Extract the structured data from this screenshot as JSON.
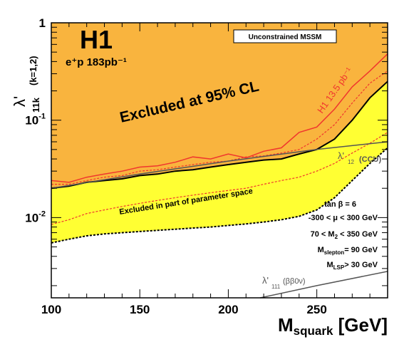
{
  "chart_data": {
    "type": "line",
    "experiment": "H1",
    "luminosity": "e⁺p 183pb⁻¹",
    "box_label": "Unconstrained MSSM",
    "xlabel_main": "M",
    "xlabel_sub": "squark",
    "xlabel_unit": " [GeV]",
    "ylabel_main": "λ'",
    "ylabel_sub": "11k",
    "ylabel_sup": "(k=1,2)",
    "xlim": [
      100,
      290
    ],
    "ylim": [
      0.0015,
      1
    ],
    "log_y": true,
    "x_ticks": [
      100,
      150,
      200,
      250
    ],
    "y_ticks": [
      {
        "value": 1,
        "base": "1",
        "exp": ""
      },
      {
        "value": 0.1,
        "base": "10",
        "exp": "-1"
      },
      {
        "value": 0.01,
        "base": "10",
        "exp": "-2"
      }
    ],
    "annotations": {
      "excluded_95": "Excluded at 95% CL",
      "excluded_part": "Excluded in part of parameter space",
      "h1_line": "H1 13.5 pb⁻¹",
      "ccu": "(CCU)",
      "ccu_lambda": "λ'",
      "ccu_sub": "12",
      "bb0v": "(ββ0ν)",
      "bb0v_lambda": "λ'",
      "bb0v_sub": "111"
    },
    "parameters": [
      {
        "main": "tan β = 6",
        "sub": "",
        "tail": ""
      },
      {
        "main": "-300 <  μ  < 300 GeV",
        "sub": "",
        "tail": ""
      },
      {
        "main": "70 < M",
        "sub": "2",
        "tail": " < 350 GeV"
      },
      {
        "main": "M",
        "sub": "slepton",
        "tail": "= 90 GeV"
      },
      {
        "main": "M",
        "sub": "LSP",
        "tail": "> 30 GeV"
      }
    ],
    "colors": {
      "excluded_95": "#F9B43E",
      "excluded_part": "#FFFF33",
      "h1_line": "#F0362E",
      "ccu_line": "#555555"
    },
    "series": [
      {
        "name": "H1 13.5 pb⁻¹",
        "style": "solid",
        "x": [
          100,
          110,
          120,
          130,
          140,
          150,
          160,
          170,
          180,
          190,
          200,
          210,
          220,
          230,
          240,
          250,
          260,
          270,
          280,
          290
        ],
        "y": [
          0.024,
          0.023,
          0.026,
          0.028,
          0.03,
          0.033,
          0.034,
          0.037,
          0.042,
          0.04,
          0.045,
          0.041,
          0.048,
          0.052,
          0.075,
          0.085,
          0.13,
          0.22,
          0.32,
          0.48
        ]
      },
      {
        "name": "",
        "style": "dashed",
        "x": [
          100,
          110,
          120,
          130,
          140,
          150,
          160,
          170,
          180,
          190,
          200,
          210,
          220,
          230,
          240,
          250,
          260,
          270,
          280,
          290
        ],
        "y": [
          0.022,
          0.022,
          0.024,
          0.026,
          0.027,
          0.03,
          0.031,
          0.033,
          0.035,
          0.037,
          0.038,
          0.042,
          0.043,
          0.046,
          0.05,
          0.064,
          0.09,
          0.15,
          0.24,
          0.32
        ]
      },
      {
        "name": "",
        "style": "solid",
        "x": [
          100,
          110,
          120,
          130,
          140,
          150,
          160,
          170,
          180,
          190,
          200,
          210,
          220,
          230,
          240,
          250,
          260,
          270,
          280,
          290
        ],
        "y": [
          0.02,
          0.021,
          0.023,
          0.024,
          0.025,
          0.027,
          0.028,
          0.03,
          0.031,
          0.033,
          0.035,
          0.037,
          0.039,
          0.04,
          0.045,
          0.05,
          0.064,
          0.1,
          0.17,
          0.25
        ]
      },
      {
        "name": "",
        "style": "dotted-red",
        "x": [
          100,
          110,
          120,
          130,
          140,
          150,
          160,
          170,
          180,
          190,
          200,
          210,
          220,
          230,
          240,
          250,
          260,
          270,
          280,
          290
        ],
        "y": [
          0.0085,
          0.0095,
          0.011,
          0.012,
          0.013,
          0.014,
          0.015,
          0.016,
          0.017,
          0.018,
          0.019,
          0.02,
          0.022,
          0.024,
          0.026,
          0.03,
          0.036,
          0.046,
          0.058,
          0.075
        ]
      },
      {
        "name": "",
        "style": "dotted-black",
        "x": [
          100,
          110,
          120,
          130,
          140,
          150,
          160,
          170,
          180,
          190,
          200,
          210,
          220,
          230,
          240,
          250,
          260,
          270,
          280,
          290
        ],
        "y": [
          0.0055,
          0.006,
          0.0065,
          0.0068,
          0.007,
          0.0072,
          0.0074,
          0.0076,
          0.0078,
          0.008,
          0.0083,
          0.0086,
          0.009,
          0.0095,
          0.0103,
          0.012,
          0.016,
          0.024,
          0.036,
          0.052
        ]
      },
      {
        "name": "λ'12 (CCU)",
        "style": "gray",
        "x": [
          100,
          150,
          200,
          250,
          290
        ],
        "y": [
          0.02,
          0.028,
          0.038,
          0.05,
          0.06
        ]
      },
      {
        "name": "λ'111 (ββ0ν)",
        "style": "gray",
        "x": [
          218,
          250,
          290
        ],
        "y": [
          0.0015,
          0.002,
          0.0028
        ]
      }
    ]
  }
}
